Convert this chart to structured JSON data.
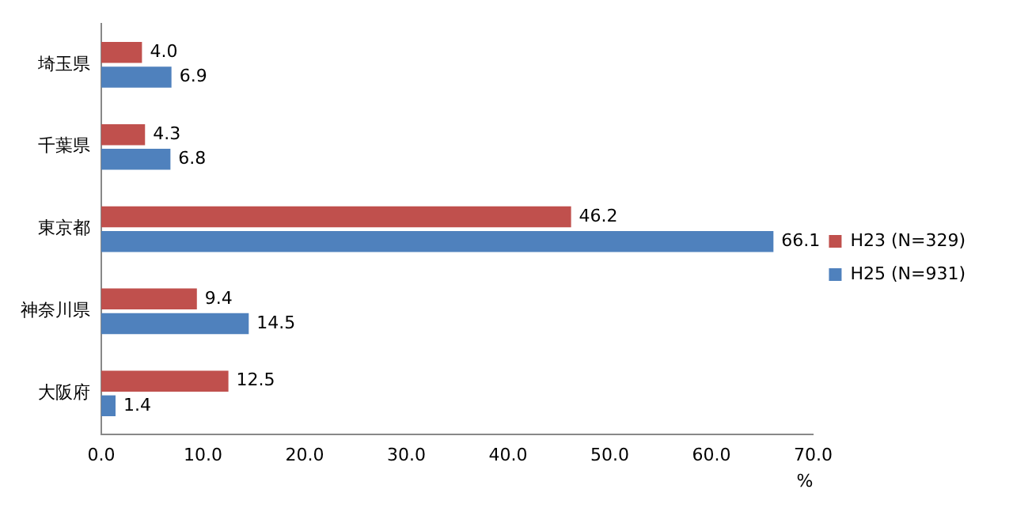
{
  "chart_data": {
    "type": "bar",
    "orientation": "horizontal",
    "categories": [
      "埼玉県",
      "千葉県",
      "東京都",
      "神奈川県",
      "大阪府"
    ],
    "series": [
      {
        "name": "H23 (N=329)",
        "color": "#c0504d",
        "values": [
          4.0,
          4.3,
          46.2,
          9.4,
          12.5
        ],
        "value_labels": [
          "4.0",
          "4.3",
          "46.2",
          "9.4",
          "12.5"
        ]
      },
      {
        "name": "H25 (N=931)",
        "color": "#4f81bd",
        "values": [
          6.9,
          6.8,
          66.1,
          14.5,
          1.4
        ],
        "value_labels": [
          "6.9",
          "6.8",
          "66.1",
          "14.5",
          "1.4"
        ]
      }
    ],
    "xlim": [
      0,
      70
    ],
    "xticks": [
      {
        "value": 0,
        "label": "0.0"
      },
      {
        "value": 10,
        "label": "10.0"
      },
      {
        "value": 20,
        "label": "20.0"
      },
      {
        "value": 30,
        "label": "30.0"
      },
      {
        "value": 40,
        "label": "40.0"
      },
      {
        "value": 50,
        "label": "50.0"
      },
      {
        "value": 60,
        "label": "60.0"
      },
      {
        "value": 70,
        "label": "70.0"
      }
    ],
    "xlabel": "%",
    "grid": false,
    "legend": "right"
  }
}
